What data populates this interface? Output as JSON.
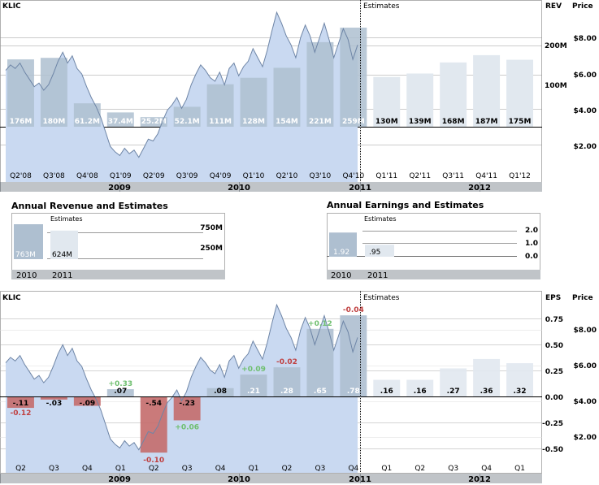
{
  "colors": {
    "bar_actual": "#aebfd0",
    "bar_estimate": "#e1e8ef",
    "bar_label_actual": "#ffffff",
    "bar_label_estimate": "#000000",
    "price_fill": "#c9d9f1",
    "price_line": "#6e85a6",
    "year_bar": "#c0c4c8",
    "grid": "#999999",
    "beat": "#6fbf6f",
    "miss": "#c04040",
    "eps_neg_bar": "#c46b6b",
    "eps_pos_bar": "#aebfd0"
  },
  "chart_data": [
    {
      "type": "bar",
      "title": "",
      "ticker": "KLIC",
      "right_axis_labels": [
        "REV",
        "Price"
      ],
      "estimates_label": "Estimates",
      "quarters": [
        "Q2'08",
        "Q3'08",
        "Q4'08",
        "Q1'09",
        "Q2'09",
        "Q3'09",
        "Q4'09",
        "Q1'10",
        "Q2'10",
        "Q3'10",
        "Q4'10",
        "Q1'11",
        "Q2'11",
        "Q3'11",
        "Q4'11",
        "Q1'12"
      ],
      "revenue_labels": [
        "176M",
        "180M",
        "61.2M",
        "37.4M",
        "25.2M",
        "52.1M",
        "111M",
        "128M",
        "154M",
        "221M",
        "259M",
        "130M",
        "139M",
        "168M",
        "187M",
        "175M"
      ],
      "revenue_values": [
        176,
        180,
        61.2,
        37.4,
        25.2,
        52.1,
        111,
        128,
        154,
        221,
        259,
        130,
        139,
        168,
        187,
        175
      ],
      "is_estimate": [
        false,
        false,
        false,
        false,
        false,
        false,
        false,
        false,
        false,
        false,
        false,
        true,
        true,
        true,
        true,
        true
      ],
      "rev_axis_ticks": [
        "200M",
        "100M"
      ],
      "price_axis_ticks": [
        "$8.00",
        "$6.00",
        "$4.00",
        "$2.00"
      ],
      "years": [
        "2009",
        "2010",
        "2011",
        "2012"
      ],
      "price_series": [
        6.1,
        6.4,
        6.2,
        6.5,
        6.0,
        5.6,
        5.2,
        5.4,
        5.0,
        5.3,
        5.9,
        6.6,
        7.1,
        6.5,
        6.9,
        6.2,
        5.9,
        5.2,
        4.6,
        4.1,
        3.5,
        2.7,
        1.9,
        1.6,
        1.4,
        1.8,
        1.5,
        1.7,
        1.3,
        1.8,
        2.3,
        2.2,
        2.6,
        3.3,
        3.9,
        4.2,
        4.6,
        4.0,
        4.5,
        5.3,
        5.9,
        6.4,
        6.1,
        5.7,
        5.5,
        6.0,
        5.3,
        6.2,
        6.5,
        5.8,
        6.3,
        6.6,
        7.3,
        6.8,
        6.3,
        7.2,
        8.3,
        9.3,
        8.7,
        8.0,
        7.5,
        6.8,
        7.9,
        8.6,
        8.0,
        7.1,
        7.9,
        8.7,
        7.8,
        6.8,
        7.6,
        8.4,
        7.8,
        6.7,
        7.5
      ]
    },
    {
      "type": "bar",
      "title": "Annual Revenue and Estimates",
      "estimates_label": "Estimates",
      "years": [
        "2010",
        "2011"
      ],
      "labels": [
        "763M",
        "624M"
      ],
      "values": [
        763,
        624
      ],
      "is_estimate": [
        false,
        true
      ],
      "axis_ticks": [
        "750M",
        "250M"
      ]
    },
    {
      "type": "bar",
      "title": "Annual Earnings and Estimates",
      "estimates_label": "Estimates",
      "years": [
        "2010",
        "2011"
      ],
      "labels": [
        "1.92",
        ".95"
      ],
      "values": [
        1.92,
        0.95
      ],
      "is_estimate": [
        false,
        true
      ],
      "axis_ticks": [
        "2.0",
        "1.0",
        "0.0"
      ]
    },
    {
      "type": "bar",
      "title": "",
      "ticker": "KLIC",
      "right_axis_labels": [
        "EPS",
        "Price"
      ],
      "estimates_label": "Estimates",
      "quarters": [
        "Q2",
        "Q3",
        "Q4",
        "Q1",
        "Q2",
        "Q3",
        "Q4",
        "Q1",
        "Q2",
        "Q3",
        "Q4",
        "Q1",
        "Q2",
        "Q3",
        "Q4",
        "Q1"
      ],
      "eps_labels": [
        "-.11",
        "-.03",
        "-.09",
        ".07",
        "-.54",
        "-.23",
        ".08",
        ".21",
        ".28",
        ".65",
        ".78",
        ".16",
        ".16",
        ".27",
        ".36",
        ".32"
      ],
      "eps_values": [
        -0.11,
        -0.03,
        -0.09,
        0.07,
        -0.54,
        -0.23,
        0.08,
        0.21,
        0.28,
        0.65,
        0.78,
        0.16,
        0.16,
        0.27,
        0.36,
        0.32
      ],
      "is_estimate": [
        false,
        false,
        false,
        false,
        false,
        false,
        false,
        false,
        false,
        false,
        false,
        true,
        true,
        true,
        true,
        true
      ],
      "surprise_labels": [
        "-0.12",
        "",
        "",
        "+0.33",
        "-0.10",
        "+0.06",
        "",
        "+0.09",
        "-0.02",
        "+0.12",
        "-0.04",
        "",
        "",
        "",
        "",
        ""
      ],
      "surprise_values": [
        -0.12,
        null,
        null,
        0.33,
        -0.1,
        0.06,
        null,
        0.09,
        -0.02,
        0.12,
        -0.04,
        null,
        null,
        null,
        null,
        null
      ],
      "eps_axis_ticks": [
        "0.75",
        "0.50",
        "0.25",
        "0.00",
        "-0.25",
        "-0.50"
      ],
      "price_axis_ticks": [
        "$8.00",
        "$6.00",
        "$4.00",
        "$2.00"
      ],
      "years": [
        "2009",
        "2010",
        "2011",
        "2012"
      ]
    }
  ]
}
